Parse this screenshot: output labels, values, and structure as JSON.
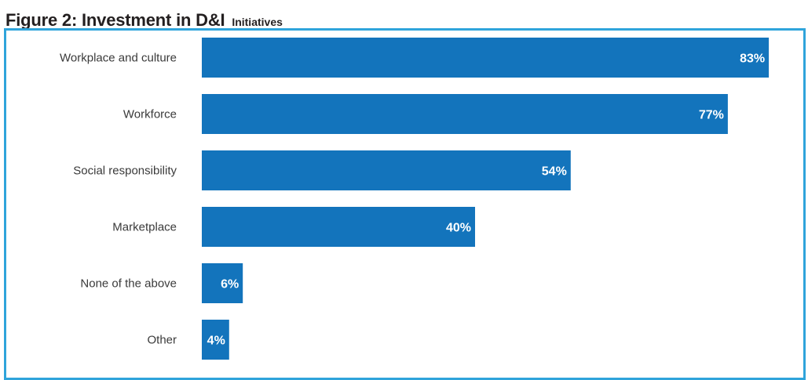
{
  "title": {
    "main": "Figure 2: Investment in D&I",
    "sub": "Initiatives"
  },
  "colors": {
    "bar": "#1374bc",
    "frame": "#2fa4db",
    "title": "#231f20",
    "label": "#3a3a3a"
  },
  "chart_data": {
    "type": "bar",
    "orientation": "horizontal",
    "categories": [
      "Workplace and culture",
      "Workforce",
      "Social responsibility",
      "Marketplace",
      "None of the above",
      "Other"
    ],
    "values": [
      83,
      77,
      54,
      40,
      6,
      4
    ],
    "value_labels": [
      "83%",
      "77%",
      "54%",
      "40%",
      "6%",
      "4%"
    ],
    "xlim": [
      0,
      100
    ],
    "grid": false,
    "legend": "none"
  }
}
